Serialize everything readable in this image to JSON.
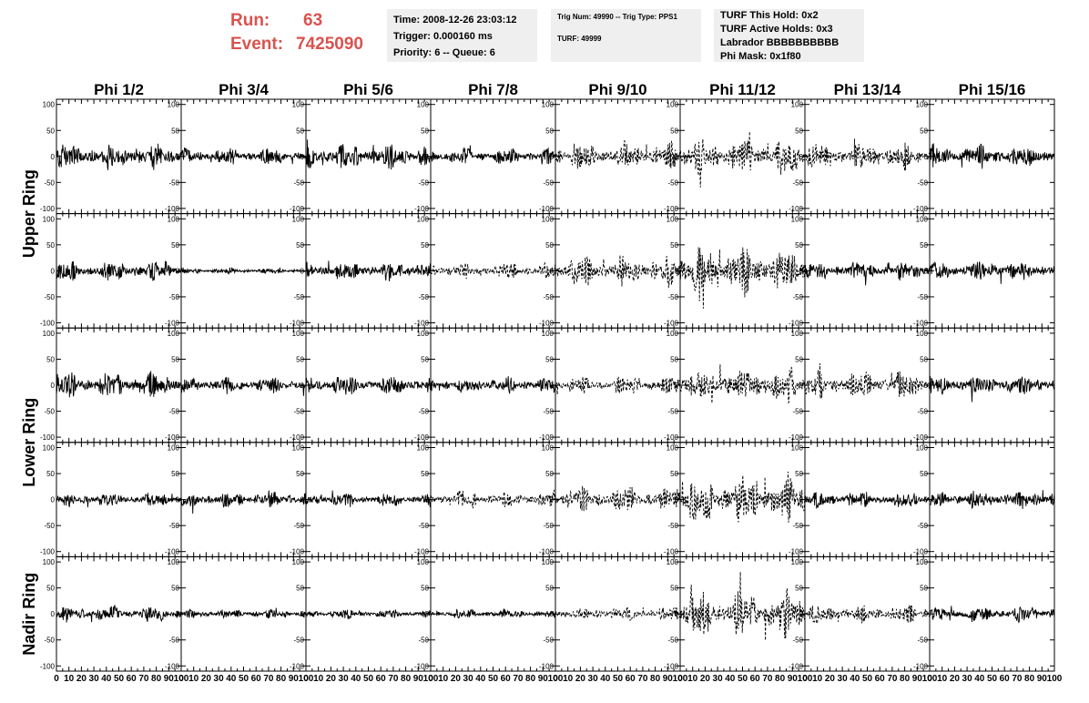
{
  "header": {
    "run_label": "Run:",
    "run_value": "63",
    "event_label": "Event:",
    "event_value": "7425090",
    "accent_color": "#d9534f"
  },
  "info_boxes": [
    {
      "lines": [
        "Time: 2008-12-26 23:03:12",
        "Trigger: 0.000160 ms",
        "Priority: 6 -- Queue: 6"
      ]
    },
    {
      "lines": [
        "Trig Num: 49990 -- Trig Type: PPS1",
        "TURF: 49999"
      ]
    },
    {
      "lines": [
        "TURF This Hold: 0x2",
        "TURF Active Holds: 0x3",
        "Labrador BBBBBBBBBB",
        "Phi Mask: 0x1f80"
      ]
    }
  ],
  "chart_data": {
    "type": "line",
    "columns": [
      "Phi 1/2",
      "Phi 3/4",
      "Phi 5/6",
      "Phi 7/8",
      "Phi 9/10",
      "Phi 11/12",
      "Phi 13/14",
      "Phi 15/16"
    ],
    "ring_labels": [
      "Upper Ring",
      "Lower Ring",
      "Nadir Ring"
    ],
    "rows": 5,
    "row_ring_index": [
      0,
      0,
      1,
      1,
      2
    ],
    "xlim": [
      0,
      100
    ],
    "ylim": [
      -110,
      110
    ],
    "x_ticks": [
      0,
      10,
      20,
      30,
      40,
      50,
      60,
      70,
      80,
      90,
      100
    ],
    "y_ticks": [
      -100,
      -50,
      0,
      50,
      100
    ],
    "x_tick_labels": [
      "0",
      "10",
      "20",
      "30",
      "40",
      "50",
      "60",
      "70",
      "80",
      "90",
      "100"
    ],
    "y_tick_labels": [
      "-100",
      "-50",
      "0",
      "50",
      "100"
    ],
    "amplitudes": [
      [
        22,
        14,
        22,
        14,
        24,
        32,
        22,
        20
      ],
      [
        17,
        5,
        17,
        14,
        26,
        40,
        17,
        18
      ],
      [
        22,
        14,
        16,
        14,
        16,
        30,
        24,
        18
      ],
      [
        12,
        14,
        12,
        14,
        22,
        42,
        14,
        16
      ],
      [
        14,
        8,
        8,
        8,
        12,
        40,
        16,
        14
      ]
    ],
    "dashed": [
      [
        false,
        false,
        false,
        false,
        true,
        true,
        true,
        false
      ],
      [
        false,
        false,
        false,
        true,
        true,
        true,
        false,
        false
      ],
      [
        false,
        false,
        false,
        false,
        true,
        true,
        true,
        false
      ],
      [
        false,
        false,
        false,
        true,
        true,
        true,
        false,
        false
      ],
      [
        false,
        false,
        false,
        false,
        true,
        true,
        true,
        false
      ]
    ],
    "samples_per_trace": 260,
    "grid": false
  }
}
